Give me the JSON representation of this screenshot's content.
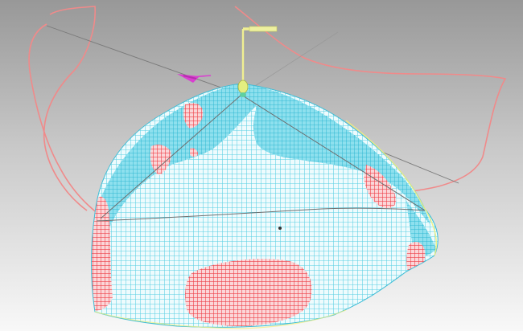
{
  "viewport": {
    "description_visible_text": "",
    "background_top": "#9a9a9a",
    "background_bottom": "#f7f7f7"
  },
  "colors": {
    "mesh_cyan": "#41c9df",
    "mesh_light": "#d8f3f8",
    "deviation_red": "#f2555c",
    "boundary_pink": "#f08a8a",
    "axis_line": "#7a7a7a",
    "probe_yellow": "#f0ef92",
    "arrow_magenta": "#d93fd0",
    "rim_yellow": "#f2f07a"
  },
  "icons": {
    "probe_marker": "vertical-probe-icon",
    "direction_arrow": "magenta-arrow-icon",
    "center_point": "center-point-icon"
  }
}
